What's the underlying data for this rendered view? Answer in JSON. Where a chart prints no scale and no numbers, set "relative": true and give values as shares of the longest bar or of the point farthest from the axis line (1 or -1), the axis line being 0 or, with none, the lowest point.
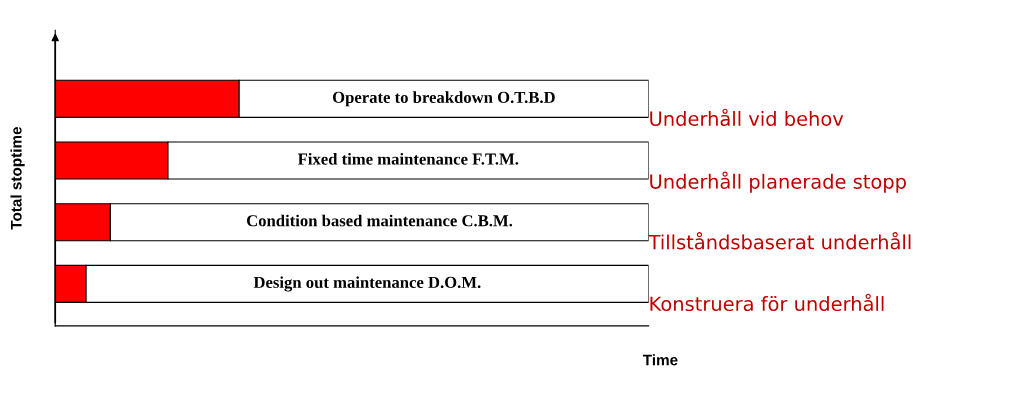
{
  "chart_data": {
    "type": "bar",
    "orientation": "horizontal",
    "stacked": true,
    "relative": true,
    "xlabel": "Time",
    "ylabel": "Total stoptime",
    "categories": [
      "Operate to breakdown O.T.B.D",
      "Fixed time maintenance F.T.M.",
      "Condition based maintenance C.B.M.",
      "Design out maintenance D.O.M."
    ],
    "series": [
      {
        "color": "#ff0000",
        "values": [
          0.31,
          0.19,
          0.093,
          0.052
        ]
      },
      {
        "color": "#ffffff",
        "values": [
          0.69,
          0.81,
          0.907,
          0.948
        ]
      }
    ],
    "annotations": [
      "Underhåll vid behov",
      "Underhåll planerade stopp",
      "Tillståndsbaserat underhåll",
      "Konstruera för underhåll"
    ],
    "legend": false
  }
}
